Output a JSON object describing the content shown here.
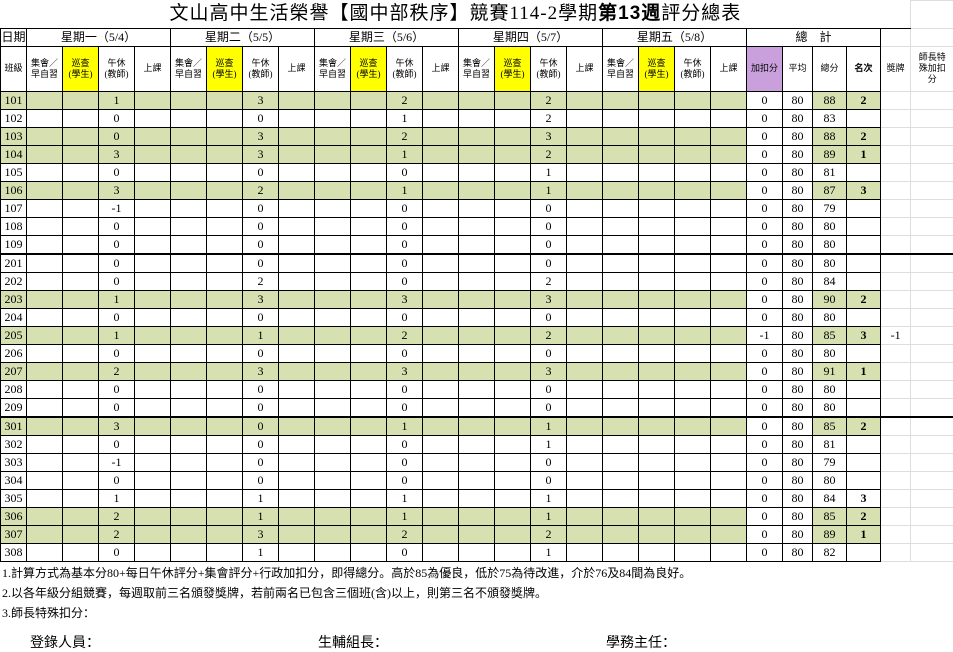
{
  "header": {
    "title_parts": [
      "文山高中生活榮譽【國中部秩序】競賽114-2學期",
      "第13週",
      "評分總表"
    ],
    "date_label": "日期",
    "class_label": "班級",
    "days": [
      "星期一（5/4）",
      "星期二（5/5）",
      "星期三（5/6）",
      "星期四（5/7）",
      "星期五（5/8）"
    ],
    "total_label": "總　計",
    "day_columns": [
      [
        "集會／",
        "早自習"
      ],
      [
        "巡查",
        "(學生)"
      ],
      [
        "午休",
        "(教師)"
      ],
      [
        "上課"
      ]
    ],
    "total_columns": [
      "加扣分",
      "平均",
      "總分",
      "名次"
    ],
    "medal_label": "獎牌",
    "special_label": [
      "師長特",
      "殊加扣",
      "分"
    ]
  },
  "table": {
    "rows": [
      {
        "class": "101",
        "noon": [
          1,
          3,
          2,
          2
        ],
        "bonus": 0,
        "average": 80,
        "total": 88,
        "rank": 2,
        "highlight": true
      },
      {
        "class": "102",
        "noon": [
          0,
          0,
          1,
          2
        ],
        "bonus": 0,
        "average": 80,
        "total": 83,
        "highlight": false
      },
      {
        "class": "103",
        "noon": [
          0,
          3,
          2,
          3
        ],
        "bonus": 0,
        "average": 80,
        "total": 88,
        "rank": 2,
        "highlight": true
      },
      {
        "class": "104",
        "noon": [
          3,
          3,
          1,
          2
        ],
        "bonus": 0,
        "average": 80,
        "total": 89,
        "rank": 1,
        "highlight": true
      },
      {
        "class": "105",
        "noon": [
          0,
          0,
          0,
          1
        ],
        "bonus": 0,
        "average": 80,
        "total": 81,
        "highlight": false
      },
      {
        "class": "106",
        "noon": [
          3,
          2,
          1,
          1
        ],
        "bonus": 0,
        "average": 80,
        "total": 87,
        "rank": 3,
        "highlight": true
      },
      {
        "class": "107",
        "noon": [
          -1,
          0,
          0,
          0
        ],
        "bonus": 0,
        "average": 80,
        "total": 79,
        "highlight": false
      },
      {
        "class": "108",
        "noon": [
          0,
          0,
          0,
          0
        ],
        "bonus": 0,
        "average": 80,
        "total": 80,
        "highlight": false
      },
      {
        "class": "109",
        "noon": [
          0,
          0,
          0,
          0
        ],
        "bonus": 0,
        "average": 80,
        "total": 80,
        "highlight": false
      },
      {
        "class": "201",
        "noon": [
          0,
          0,
          0,
          0
        ],
        "bonus": 0,
        "average": 80,
        "total": 80,
        "highlight": false
      },
      {
        "class": "202",
        "noon": [
          0,
          2,
          0,
          2
        ],
        "bonus": 0,
        "average": 80,
        "total": 84,
        "highlight": false
      },
      {
        "class": "203",
        "noon": [
          1,
          3,
          3,
          3
        ],
        "bonus": 0,
        "average": 80,
        "total": 90,
        "rank": 2,
        "highlight": true
      },
      {
        "class": "204",
        "noon": [
          0,
          0,
          0,
          0
        ],
        "bonus": 0,
        "average": 80,
        "total": 80,
        "highlight": false
      },
      {
        "class": "205",
        "noon": [
          1,
          1,
          2,
          2
        ],
        "bonus": -1,
        "average": 80,
        "total": 85,
        "rank": 3,
        "medal": -1,
        "highlight": true
      },
      {
        "class": "206",
        "noon": [
          0,
          0,
          0,
          0
        ],
        "bonus": 0,
        "average": 80,
        "total": 80,
        "highlight": false
      },
      {
        "class": "207",
        "noon": [
          2,
          3,
          3,
          3
        ],
        "bonus": 0,
        "average": 80,
        "total": 91,
        "rank": 1,
        "highlight": true
      },
      {
        "class": "208",
        "noon": [
          0,
          0,
          0,
          0
        ],
        "bonus": 0,
        "average": 80,
        "total": 80,
        "highlight": false
      },
      {
        "class": "209",
        "noon": [
          0,
          0,
          0,
          0
        ],
        "bonus": 0,
        "average": 80,
        "total": 80,
        "highlight": false
      },
      {
        "class": "301",
        "noon": [
          3,
          0,
          1,
          1
        ],
        "bonus": 0,
        "average": 80,
        "total": 85,
        "rank": 2,
        "highlight": true
      },
      {
        "class": "302",
        "noon": [
          0,
          0,
          0,
          1
        ],
        "bonus": 0,
        "average": 80,
        "total": 81,
        "highlight": false
      },
      {
        "class": "303",
        "noon": [
          -1,
          0,
          0,
          0
        ],
        "bonus": 0,
        "average": 80,
        "total": 79,
        "highlight": false
      },
      {
        "class": "304",
        "noon": [
          0,
          0,
          0,
          0
        ],
        "bonus": 0,
        "average": 80,
        "total": 80,
        "highlight": false
      },
      {
        "class": "305",
        "noon": [
          1,
          1,
          1,
          1
        ],
        "bonus": 0,
        "average": 80,
        "total": 84,
        "rank": 3,
        "highlight": false
      },
      {
        "class": "306",
        "noon": [
          2,
          1,
          1,
          1
        ],
        "bonus": 0,
        "average": 80,
        "total": 85,
        "rank": 2,
        "highlight": true
      },
      {
        "class": "307",
        "noon": [
          2,
          3,
          2,
          2
        ],
        "bonus": 0,
        "average": 80,
        "total": 89,
        "rank": 1,
        "highlight": true
      },
      {
        "class": "308",
        "noon": [
          0,
          1,
          0,
          1
        ],
        "bonus": 0,
        "average": 80,
        "total": 82,
        "highlight": false
      }
    ]
  },
  "notes": [
    "1.計算方式為基本分80+每日午休評分+集會評分+行政加扣分，即得總分。高於85為優良，低於75為待改進，介於76及84間為良好。",
    "2.以各年級分組競賽，每週取前三名頒發獎牌，若前兩名已包含三個班(含)以上，則第三名不頒發獎牌。",
    "3.師長特殊扣分："
  ],
  "signatures": [
    "登錄人員：",
    "生輔組長：",
    "學務主任："
  ]
}
